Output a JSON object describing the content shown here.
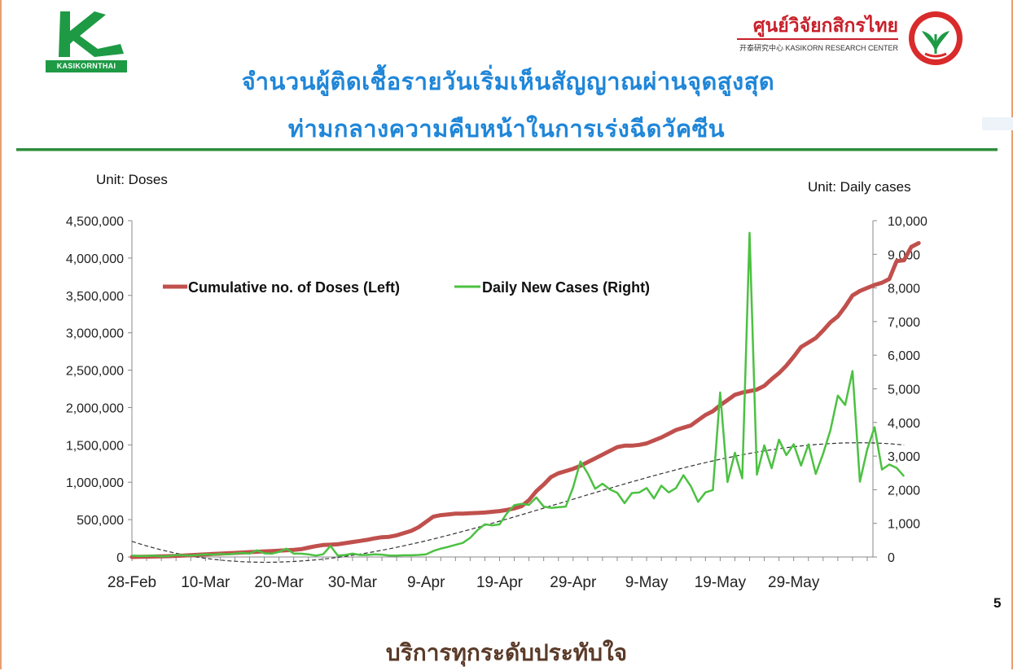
{
  "header": {
    "bank_logo_text": "KASIKORNTHAI",
    "research_center_name": "ศูนย์วิจัยกสิกรไทย",
    "research_center_sub": "开泰研究中心 KASIKORN RESEARCH CENTER"
  },
  "title": {
    "line1": "จำนวนผู้ติดเชื้อรายวันเริ่มเห็นสัญญาณผ่านจุดสูงสุด",
    "line2": "ท่ามกลางความคืบหน้าในการเร่งฉีดวัคซีน"
  },
  "footer": {
    "tagline": "บริการทุกระดับประทับใจ",
    "page_number": "5"
  },
  "colors": {
    "title": "#1f86d8",
    "doses": "#c0504d",
    "cases": "#4cc142",
    "divider": "#2e8b3b",
    "brand_red": "#c8202a",
    "brand_green": "#1e9a45"
  },
  "chart_data": {
    "type": "line",
    "x_start": "2021-02-28",
    "unit_left_label": "Unit: Doses",
    "unit_right_label": "Unit: Daily cases",
    "x_tick_labels": [
      "28-Feb",
      "10-Mar",
      "20-Mar",
      "30-Mar",
      "9-Apr",
      "19-Apr",
      "29-Apr",
      "9-May",
      "19-May",
      "29-May"
    ],
    "y_left_ticks": [
      "0",
      "500,000",
      "1,000,000",
      "1,500,000",
      "2,000,000",
      "2,500,000",
      "3,000,000",
      "3,500,000",
      "4,000,000",
      "4,500,000"
    ],
    "y_right_ticks": [
      "0",
      "1,000",
      "2,000",
      "3,000",
      "4,000",
      "5,000",
      "6,000",
      "7,000",
      "8,000",
      "9,000",
      "10,000"
    ],
    "ylim_left": [
      0,
      4500000
    ],
    "ylim_right": [
      0,
      10000
    ],
    "legend_position": "top-left",
    "grid": false,
    "series": [
      {
        "name": "Cumulative no. of Doses (Left)",
        "axis": "left",
        "color": "#c0504d",
        "values": [
          0,
          2000,
          4000,
          6000,
          8000,
          11000,
          15000,
          20000,
          25000,
          30000,
          35000,
          40000,
          45000,
          50000,
          55000,
          60000,
          65000,
          70000,
          75000,
          80000,
          85000,
          90000,
          95000,
          105000,
          125000,
          145000,
          160000,
          165000,
          170000,
          185000,
          200000,
          215000,
          230000,
          250000,
          265000,
          270000,
          290000,
          320000,
          350000,
          400000,
          470000,
          540000,
          560000,
          570000,
          580000,
          580000,
          585000,
          590000,
          595000,
          605000,
          615000,
          630000,
          650000,
          680000,
          760000,
          880000,
          970000,
          1070000,
          1120000,
          1150000,
          1180000,
          1220000,
          1270000,
          1320000,
          1370000,
          1420000,
          1470000,
          1490000,
          1490000,
          1500000,
          1520000,
          1560000,
          1600000,
          1650000,
          1700000,
          1730000,
          1760000,
          1830000,
          1900000,
          1950000,
          2030000,
          2100000,
          2170000,
          2200000,
          2220000,
          2240000,
          2290000,
          2380000,
          2460000,
          2560000,
          2680000,
          2810000,
          2870000,
          2930000,
          3030000,
          3140000,
          3220000,
          3350000,
          3500000,
          3560000,
          3600000,
          3640000,
          3670000,
          3720000,
          3960000,
          3970000,
          4150000,
          4200000
        ]
      },
      {
        "name": "Daily New Cases (Right)",
        "axis": "right",
        "color": "#4cc142",
        "values": [
          40,
          30,
          30,
          40,
          20,
          30,
          60,
          50,
          40,
          60,
          80,
          70,
          90,
          80,
          100,
          120,
          100,
          200,
          110,
          100,
          150,
          250,
          100,
          100,
          80,
          40,
          80,
          330,
          40,
          60,
          100,
          60,
          60,
          80,
          70,
          40,
          40,
          50,
          50,
          60,
          80,
          180,
          250,
          300,
          360,
          420,
          570,
          800,
          970,
          940,
          970,
          1300,
          1540,
          1580,
          1550,
          1770,
          1500,
          1460,
          1480,
          1500,
          2070,
          2840,
          2480,
          2030,
          2180,
          2010,
          1910,
          1600,
          1900,
          1920,
          2050,
          1740,
          2120,
          1920,
          2050,
          2430,
          2110,
          1640,
          1920,
          1990,
          4890,
          2230,
          3100,
          2340,
          9640,
          2450,
          3320,
          2640,
          3490,
          3030,
          3350,
          2720,
          3350,
          2470,
          3070,
          3770,
          4800,
          4520,
          5530,
          2240,
          3200,
          3860,
          2600,
          2750,
          2650,
          2400
        ]
      }
    ],
    "trend_line": {
      "style": "dashed",
      "color": "#333333",
      "axis": "right",
      "type": "polynomial"
    }
  }
}
